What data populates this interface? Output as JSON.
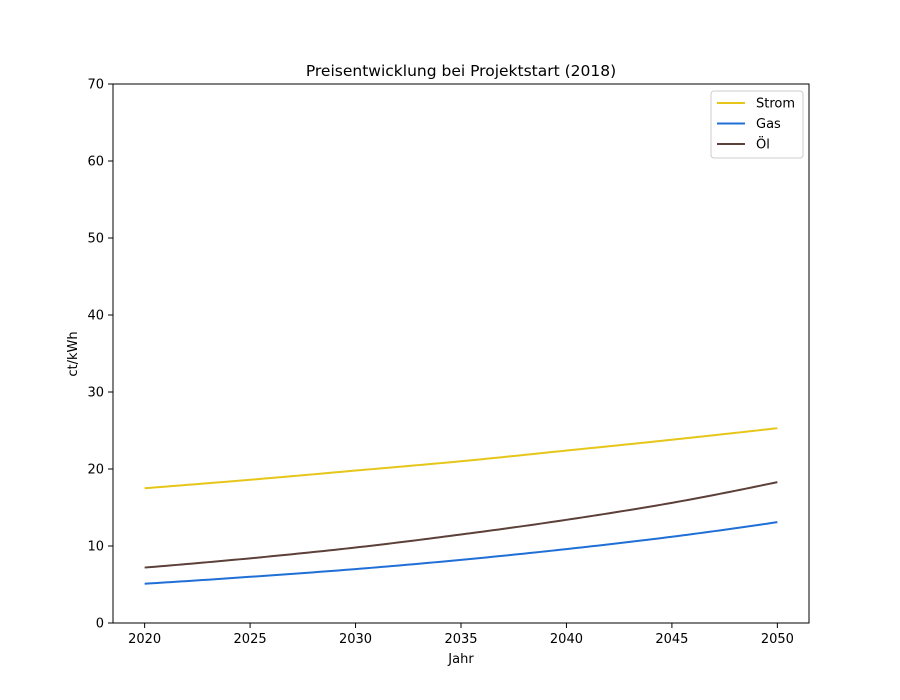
{
  "chart_data": {
    "type": "line",
    "title": "Preisentwicklung bei Projektstart (2018)",
    "xlabel": "Jahr",
    "ylabel": "ct/kWh",
    "xlim": [
      2018.5,
      2051.5
    ],
    "ylim": [
      0,
      70
    ],
    "xticks": [
      2020,
      2025,
      2030,
      2035,
      2040,
      2045,
      2050
    ],
    "yticks": [
      0,
      10,
      20,
      30,
      40,
      50,
      60,
      70
    ],
    "grid": false,
    "legend_position": "top-right",
    "x": [
      2020,
      2025,
      2030,
      2035,
      2040,
      2045,
      2050
    ],
    "series": [
      {
        "name": "Strom",
        "color": "#e6c619",
        "values": [
          17.5,
          18.6,
          19.8,
          21.0,
          22.4,
          23.8,
          25.3
        ]
      },
      {
        "name": "Gas",
        "color": "#1f6fd6",
        "values": [
          5.1,
          6.0,
          7.0,
          8.2,
          9.6,
          11.2,
          13.1
        ]
      },
      {
        "name": "Öl",
        "color": "#5c4039",
        "values": [
          7.2,
          8.4,
          9.8,
          11.5,
          13.4,
          15.6,
          18.3
        ]
      }
    ]
  }
}
